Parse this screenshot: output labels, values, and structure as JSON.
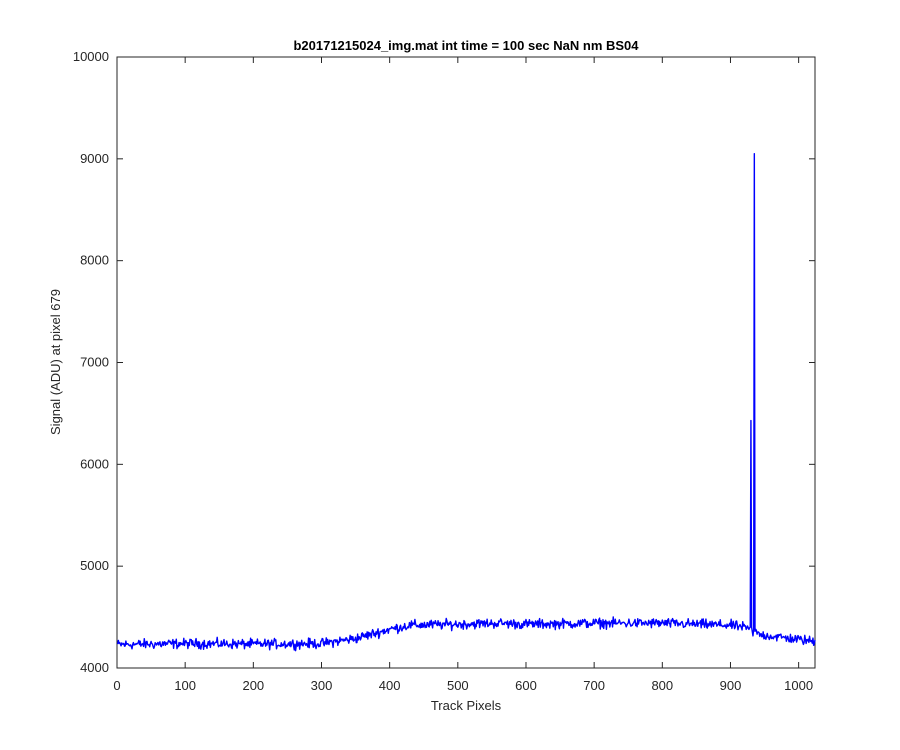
{
  "chart_data": {
    "type": "line",
    "title": "b20171215024_img.mat int time = 100 sec  NaN nm BS04",
    "xlabel": "Track Pixels",
    "ylabel": "Signal (ADU) at pixel 679",
    "xlim": [
      0,
      1024
    ],
    "ylim": [
      4000,
      10000
    ],
    "xticks": [
      "0",
      "100",
      "200",
      "300",
      "400",
      "500",
      "600",
      "700",
      "800",
      "900",
      "1000"
    ],
    "yticks": [
      "4000",
      "5000",
      "6000",
      "7000",
      "8000",
      "9000",
      "10000"
    ],
    "grid": false,
    "legend": "none",
    "series": [
      {
        "color": "#0000ff",
        "x_start": 1,
        "x_step": 1,
        "baseline_profile": [
          [
            0,
            4230
          ],
          [
            100,
            4240
          ],
          [
            200,
            4235
          ],
          [
            300,
            4240
          ],
          [
            350,
            4290
          ],
          [
            400,
            4380
          ],
          [
            430,
            4420
          ],
          [
            500,
            4430
          ],
          [
            560,
            4440
          ],
          [
            600,
            4430
          ],
          [
            700,
            4440
          ],
          [
            800,
            4440
          ],
          [
            900,
            4420
          ],
          [
            920,
            4400
          ],
          [
            940,
            4330
          ],
          [
            1024,
            4260
          ]
        ],
        "noise_amplitude": 55,
        "spikes": [
          {
            "x": 929,
            "y": 4400
          },
          {
            "x": 930,
            "y": 6430
          },
          {
            "x": 931,
            "y": 4400
          },
          {
            "x": 934,
            "y": 4380
          },
          {
            "x": 935,
            "y": 9050
          },
          {
            "x": 936,
            "y": 4360
          },
          {
            "x": 937,
            "y": 4380
          }
        ]
      }
    ]
  }
}
